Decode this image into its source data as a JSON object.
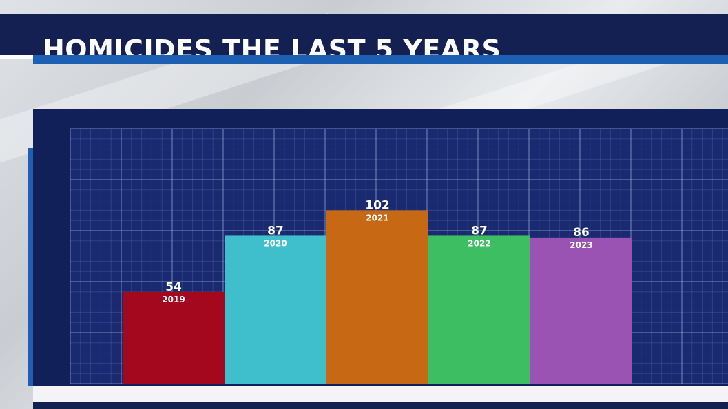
{
  "header": {
    "title": "HOMICIDES THE LAST 5 YEARS"
  },
  "colors": {
    "header_bg": "#141f52",
    "header_accent": "#1d5fb3",
    "panel_bg": "#12205a",
    "grid_bg": "#1a2a70"
  },
  "chart_data": {
    "type": "bar",
    "title": "HOMICIDES THE LAST 5 YEARS",
    "categories": [
      "2019",
      "2020",
      "2021",
      "2022",
      "2023"
    ],
    "values": [
      54,
      87,
      102,
      87,
      86
    ],
    "bar_colors": [
      "#a3081e",
      "#3fbfcb",
      "#c76814",
      "#3dbe63",
      "#9b53b3"
    ],
    "xlabel": "",
    "ylabel": "",
    "ylim": [
      0,
      150
    ],
    "grid": true,
    "legend": "none"
  }
}
